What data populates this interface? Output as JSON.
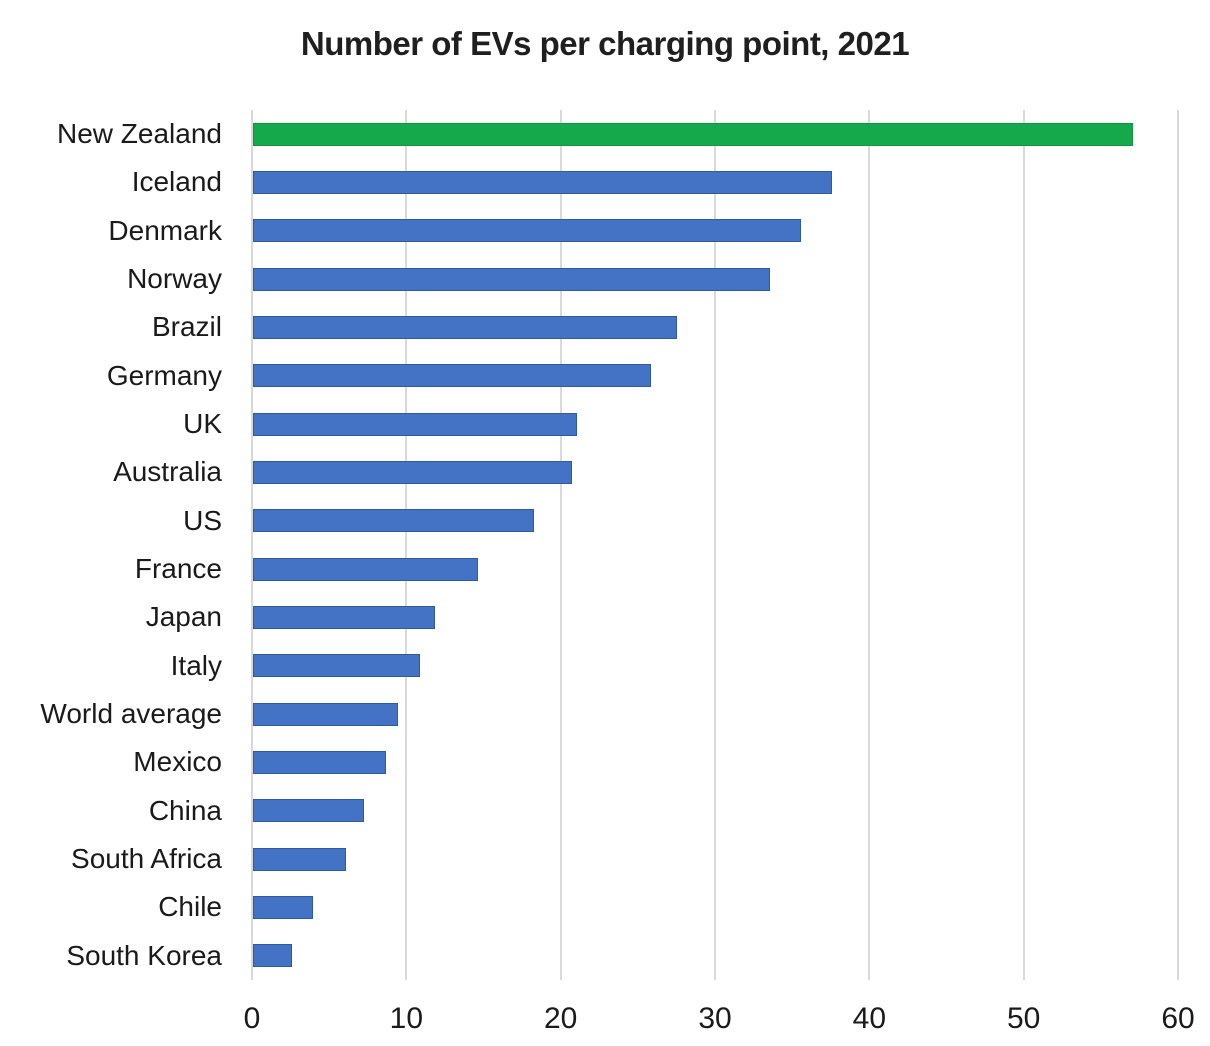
{
  "chart_data": {
    "type": "bar",
    "orientation": "horizontal",
    "title": "Number of EVs per charging point, 2021",
    "categories": [
      "New Zealand",
      "Iceland",
      "Denmark",
      "Norway",
      "Brazil",
      "Germany",
      "UK",
      "Australia",
      "US",
      "France",
      "Japan",
      "Italy",
      "World average",
      "Mexico",
      "China",
      "South Africa",
      "Chile",
      "South Korea"
    ],
    "values": [
      57,
      37.5,
      35.5,
      33.5,
      27.5,
      25.8,
      21,
      20.7,
      18.2,
      14.6,
      11.8,
      10.8,
      9.4,
      8.6,
      7.2,
      6,
      3.9,
      2.5
    ],
    "highlight_category": "New Zealand",
    "xlabel": "",
    "ylabel": "",
    "xlim": [
      0,
      60
    ],
    "x_ticks": [
      0,
      10,
      20,
      30,
      40,
      50,
      60
    ],
    "grid": "vertical",
    "legend": "none",
    "colors": {
      "bar_fill": "#4472C4",
      "bar_border": "#2E5A9E",
      "highlight_fill": "#16A94C",
      "highlight_border": "#0E9644",
      "gridline": "#D9D9D9",
      "text": "#1A1A1A"
    }
  }
}
